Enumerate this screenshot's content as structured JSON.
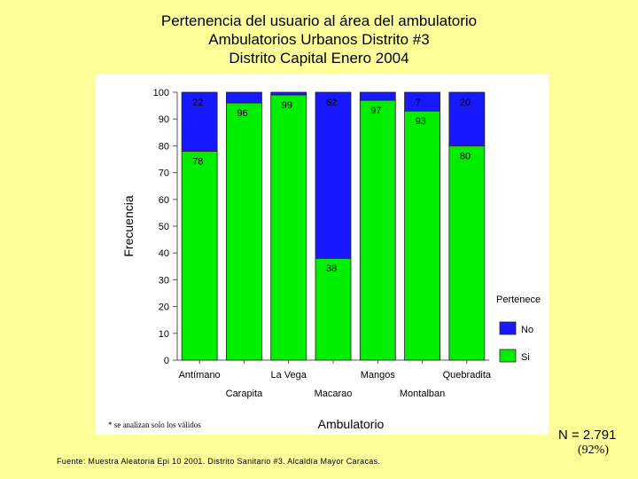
{
  "title_lines": [
    "Pertenencia del usuario al área del ambulatorio",
    "Ambulatorios Urbanos Distrito #3",
    "Distrito Capital Enero 2004"
  ],
  "note": "* se analizan solo los válidos",
  "source": "Fuente: Muestra Aleatoria Epi 10 2001. Distrito Sanitario #3. Alcaldía Mayor Caracas.",
  "n_total": "N = 2.791",
  "n_pct": "(92%)",
  "colors": {
    "si": "#00EE00",
    "no": "#1818FF",
    "plot_bg": "#FFFFFF",
    "slide_bg": "#FFFF99"
  },
  "chart_data": {
    "type": "bar",
    "stacked": true,
    "title": "",
    "xlabel": "Ambulatorio",
    "ylabel": "Frecuencia",
    "ylim": [
      0,
      100
    ],
    "yticks": [
      0,
      10,
      20,
      30,
      40,
      50,
      60,
      70,
      80,
      90,
      100
    ],
    "categories": [
      "Antímano",
      "Carapita",
      "La Vega",
      "Macarao",
      "Mangos",
      "Montalban",
      "Quebradita"
    ],
    "series": [
      {
        "name": "Si",
        "values": [
          78,
          96,
          99,
          38,
          97,
          93,
          80
        ],
        "labels": [
          "78",
          "96",
          "99",
          "38",
          "97",
          "93",
          "80"
        ]
      },
      {
        "name": "No",
        "values": [
          22,
          4,
          1,
          62,
          3,
          7,
          20
        ],
        "labels": [
          "22",
          "",
          "",
          "62",
          "",
          "7",
          "20"
        ]
      }
    ],
    "legend": {
      "title": "Pertenece",
      "position": "right",
      "entries": [
        "No",
        "Si"
      ]
    },
    "grid": false
  }
}
